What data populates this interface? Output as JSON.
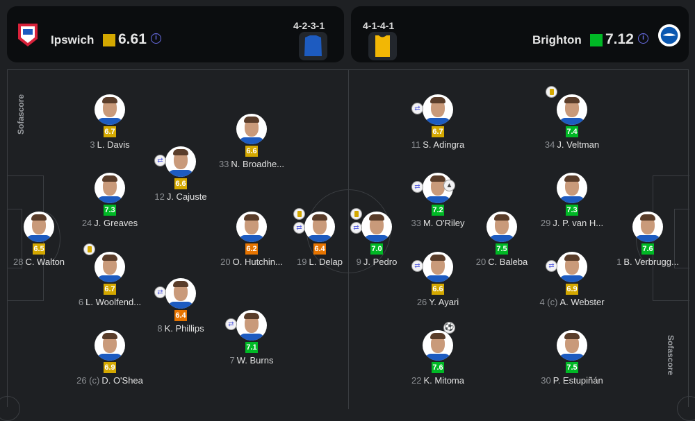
{
  "home": {
    "name": "Ipswich",
    "avg_rating": "6.61",
    "rating_color": "#d4a800",
    "formation": "4-2-3-1",
    "kit_color": "#1d5bc0",
    "info_icon": "info-icon",
    "crest_color": "#d8213a"
  },
  "away": {
    "name": "Brighton",
    "avg_rating": "7.12",
    "rating_color": "#00b825",
    "formation": "4-1-4-1",
    "kit_color": "#f2b705",
    "info_icon": "info-icon",
    "crest_color": "#0a57b0"
  },
  "branding": "Sofascore",
  "players": [
    {
      "team": "home",
      "number": "28",
      "name": "C. Walton",
      "rating": "6.5",
      "color": "y",
      "icons": []
    },
    {
      "team": "home",
      "number": "3",
      "name": "L. Davis",
      "rating": "6.7",
      "color": "y",
      "icons": []
    },
    {
      "team": "home",
      "number": "24",
      "name": "J. Greaves",
      "rating": "7.3",
      "color": "g",
      "icons": []
    },
    {
      "team": "home",
      "number": "6",
      "name": "L. Woolfend...",
      "rating": "6.7",
      "color": "y",
      "icons": [
        "yellow-card"
      ]
    },
    {
      "team": "home",
      "number": "26 (c)",
      "name": "D. O'Shea",
      "rating": "6.9",
      "color": "y",
      "icons": []
    },
    {
      "team": "home",
      "number": "12",
      "name": "J. Cajuste",
      "rating": "6.6",
      "color": "y",
      "icons": [
        "substitution"
      ]
    },
    {
      "team": "home",
      "number": "8",
      "name": "K. Phillips",
      "rating": "6.4",
      "color": "o",
      "icons": [
        "substitution"
      ]
    },
    {
      "team": "home",
      "number": "33",
      "name": "N. Broadhe...",
      "rating": "6.6",
      "color": "y",
      "icons": []
    },
    {
      "team": "home",
      "number": "20",
      "name": "O. Hutchin...",
      "rating": "6.2",
      "color": "o",
      "icons": []
    },
    {
      "team": "home",
      "number": "7",
      "name": "W. Burns",
      "rating": "7.1",
      "color": "g",
      "icons": [
        "substitution"
      ]
    },
    {
      "team": "home",
      "number": "19",
      "name": "L. Delap",
      "rating": "6.4",
      "color": "o",
      "icons": [
        "yellow-card",
        "substitution"
      ]
    },
    {
      "team": "away",
      "number": "9",
      "name": "J. Pedro",
      "rating": "7.0",
      "color": "g",
      "icons": [
        "yellow-card",
        "substitution"
      ]
    },
    {
      "team": "away",
      "number": "11",
      "name": "S. Adingra",
      "rating": "6.7",
      "color": "y",
      "icons": [
        "substitution"
      ]
    },
    {
      "team": "away",
      "number": "33",
      "name": "M. O'Riley",
      "rating": "7.2",
      "color": "g",
      "icons": [
        "substitution",
        "assist"
      ]
    },
    {
      "team": "away",
      "number": "26",
      "name": "Y. Ayari",
      "rating": "6.6",
      "color": "y",
      "icons": [
        "substitution"
      ]
    },
    {
      "team": "away",
      "number": "22",
      "name": "K. Mitoma",
      "rating": "7.6",
      "color": "g",
      "icons": [
        "goal"
      ]
    },
    {
      "team": "away",
      "number": "20",
      "name": "C. Baleba",
      "rating": "7.5",
      "color": "g",
      "icons": []
    },
    {
      "team": "away",
      "number": "34",
      "name": "J. Veltman",
      "rating": "7.4",
      "color": "g",
      "icons": [
        "yellow-card"
      ]
    },
    {
      "team": "away",
      "number": "29",
      "name": "J. P. van H...",
      "rating": "7.3",
      "color": "g",
      "icons": []
    },
    {
      "team": "away",
      "number": "4 (c)",
      "name": "A. Webster",
      "rating": "6.9",
      "color": "y",
      "icons": [
        "substitution"
      ]
    },
    {
      "team": "away",
      "number": "30",
      "name": "P. Estupiñán",
      "rating": "7.5",
      "color": "g",
      "icons": []
    },
    {
      "team": "away",
      "number": "1",
      "name": "B. Verbrugg...",
      "rating": "7.6",
      "color": "g",
      "icons": []
    }
  ]
}
